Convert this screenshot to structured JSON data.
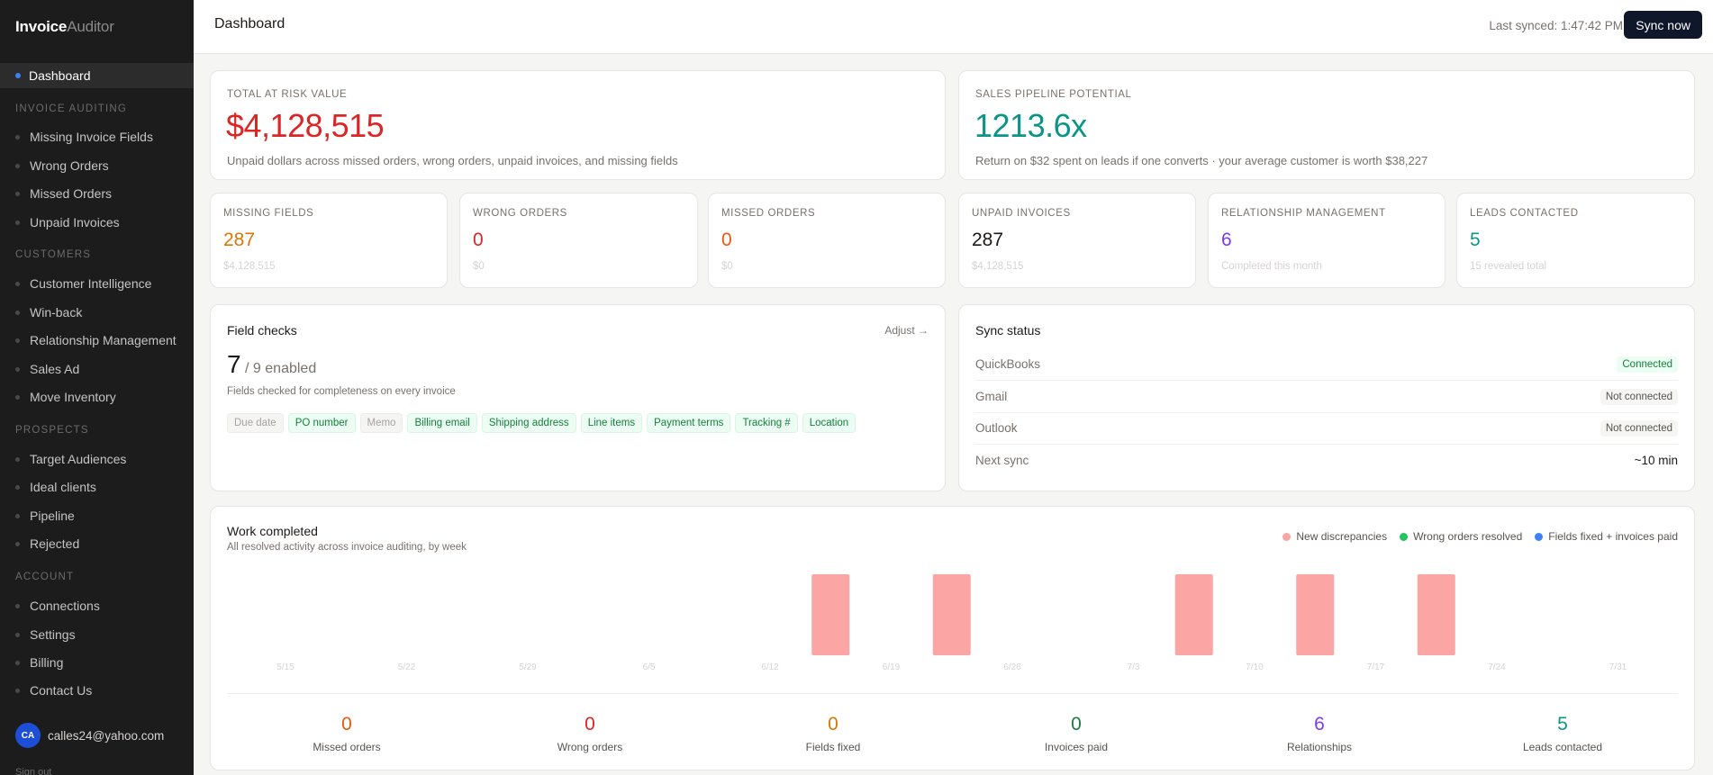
{
  "brand": {
    "part1": "Invoice",
    "part2": "Auditor"
  },
  "sidebar": {
    "active": "Dashboard",
    "sections": [
      {
        "title": "INVOICE AUDITING",
        "items": [
          "Missing Invoice Fields",
          "Wrong Orders",
          "Missed Orders",
          "Unpaid Invoices"
        ]
      },
      {
        "title": "CUSTOMERS",
        "items": [
          "Customer Intelligence",
          "Win-back",
          "Relationship Management",
          "Sales Ad",
          "Move Inventory"
        ]
      },
      {
        "title": "PROSPECTS",
        "items": [
          "Target Audiences",
          "Ideal clients",
          "Pipeline",
          "Rejected"
        ]
      },
      {
        "title": "ACCOUNT",
        "items": [
          "Connections",
          "Settings",
          "Billing",
          "Contact Us"
        ]
      }
    ],
    "user": {
      "initials": "CA",
      "email": "calles24@yahoo.com"
    },
    "signout": "Sign out"
  },
  "topbar": {
    "title": "Dashboard",
    "last_synced": "Last synced: 1:47:42 PM",
    "sync_button": "Sync now"
  },
  "risk": {
    "label": "TOTAL AT RISK VALUE",
    "value": "$4,128,515",
    "sub": "Unpaid dollars across missed orders, wrong orders, unpaid invoices, and missing fields"
  },
  "pipeline": {
    "label": "SALES PIPELINE POTENTIAL",
    "value": "1213.6x",
    "sub": "Return on $32 spent on leads if one converts · your average customer is worth $38,227"
  },
  "kpis": [
    {
      "label": "MISSING FIELDS",
      "value": "287",
      "sub": "$4,128,515",
      "color": "#d97706"
    },
    {
      "label": "WRONG ORDERS",
      "value": "0",
      "sub": "$0",
      "color": "#dc2626"
    },
    {
      "label": "MISSED ORDERS",
      "value": "0",
      "sub": "$0",
      "color": "#ea580c"
    },
    {
      "label": "UNPAID INVOICES",
      "value": "287",
      "sub": "$4,128,515",
      "color": "#1c1917"
    },
    {
      "label": "RELATIONSHIP MANAGEMENT",
      "value": "6",
      "sub": "Completed this month",
      "color": "#7c3aed"
    },
    {
      "label": "LEADS CONTACTED",
      "value": "5",
      "sub": "15 revealed total",
      "color": "#0d9488"
    }
  ],
  "field_checks": {
    "title": "Field checks",
    "adjust": "Adjust →",
    "count": "7",
    "total": "/ 9 enabled",
    "desc": "Fields checked for completeness on every invoice",
    "tags": [
      {
        "label": "Due date",
        "enabled": false
      },
      {
        "label": "PO number",
        "enabled": true
      },
      {
        "label": "Memo",
        "enabled": false
      },
      {
        "label": "Billing email",
        "enabled": true
      },
      {
        "label": "Shipping address",
        "enabled": true
      },
      {
        "label": "Line items",
        "enabled": true
      },
      {
        "label": "Payment terms",
        "enabled": true
      },
      {
        "label": "Tracking #",
        "enabled": true
      },
      {
        "label": "Location",
        "enabled": true
      }
    ]
  },
  "sync_status": {
    "title": "Sync status",
    "rows": [
      {
        "service": "QuickBooks",
        "status": "Connected",
        "kind": "ok"
      },
      {
        "service": "Gmail",
        "status": "Not connected",
        "kind": "no"
      },
      {
        "service": "Outlook",
        "status": "Not connected",
        "kind": "no"
      },
      {
        "service": "Next sync",
        "status": "~10 min",
        "kind": "plain"
      }
    ]
  },
  "work": {
    "title": "Work completed",
    "subtitle": "All resolved activity across invoice auditing, by week",
    "legend": [
      {
        "name": "New discrepancies",
        "color": "#fca5a5"
      },
      {
        "name": "Wrong orders resolved",
        "color": "#22c55e"
      },
      {
        "name": "Fields fixed + invoices paid",
        "color": "#3b82f6"
      }
    ],
    "stats": [
      {
        "value": "0",
        "label": "Missed orders",
        "color": "#ea580c"
      },
      {
        "value": "0",
        "label": "Wrong orders",
        "color": "#dc2626"
      },
      {
        "value": "0",
        "label": "Fields fixed",
        "color": "#d97706"
      },
      {
        "value": "0",
        "label": "Invoices paid",
        "color": "#15803d"
      },
      {
        "value": "6",
        "label": "Relationships",
        "color": "#7c3aed"
      },
      {
        "value": "5",
        "label": "Leads contacted",
        "color": "#0d9488"
      }
    ]
  },
  "chart_data": {
    "type": "bar",
    "categories": [
      "5/15",
      "5/22",
      "5/29",
      "6/5",
      "6/12",
      "6/19",
      "6/26",
      "7/3",
      "7/10",
      "7/17",
      "7/24",
      "7/31"
    ],
    "series": [
      {
        "name": "New discrepancies",
        "color": "#fca5a5",
        "values": [
          0,
          0,
          0,
          0,
          0,
          1,
          1,
          0,
          1,
          1,
          1,
          0
        ]
      },
      {
        "name": "Wrong orders resolved",
        "color": "#22c55e",
        "values": [
          0,
          0,
          0,
          0,
          0,
          0,
          0,
          0,
          0,
          0,
          0,
          0
        ]
      },
      {
        "name": "Fields fixed + invoices paid",
        "color": "#3b82f6",
        "values": [
          0,
          0,
          0,
          0,
          0,
          0,
          0,
          0,
          0,
          0,
          0,
          0
        ]
      }
    ],
    "title": "Work completed",
    "xlabel": "",
    "ylabel": "",
    "grid": false,
    "legend": "top-right"
  }
}
